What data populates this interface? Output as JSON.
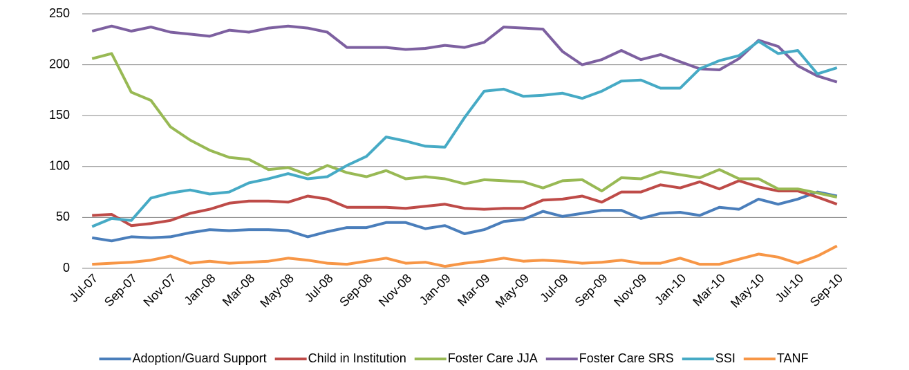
{
  "chart_data": {
    "type": "line",
    "categories": [
      "Jul-07",
      null,
      "Sep-07",
      null,
      "Nov-07",
      null,
      "Jan-08",
      null,
      "Mar-08",
      null,
      "May-08",
      null,
      "Jul-08",
      null,
      "Sep-08",
      null,
      "Nov-08",
      null,
      "Jan-09",
      null,
      "Mar-09",
      null,
      "May-09",
      null,
      "Jul-09",
      null,
      "Sep-09",
      null,
      "Nov-09",
      null,
      "Jan-10",
      null,
      "Mar-10",
      null,
      "May-10",
      null,
      "Jul-10",
      null,
      "Sep-10"
    ],
    "series": [
      {
        "name": "Adoption/Guard Support",
        "color": "#4a7ebb",
        "values": [
          30,
          27,
          31,
          30,
          31,
          35,
          38,
          37,
          38,
          38,
          37,
          31,
          36,
          40,
          40,
          45,
          45,
          39,
          42,
          34,
          38,
          46,
          48,
          56,
          51,
          54,
          57,
          57,
          49,
          54,
          55,
          52,
          60,
          58,
          68,
          63,
          68,
          75,
          71
        ]
      },
      {
        "name": "Child in Institution",
        "color": "#be4b48",
        "values": [
          52,
          53,
          42,
          44,
          47,
          54,
          58,
          64,
          66,
          66,
          65,
          71,
          68,
          60,
          60,
          60,
          59,
          61,
          63,
          59,
          58,
          59,
          59,
          67,
          68,
          71,
          65,
          75,
          75,
          82,
          79,
          85,
          78,
          86,
          80,
          76,
          76,
          70,
          63
        ]
      },
      {
        "name": "Foster Care JJA",
        "color": "#98b954",
        "values": [
          206,
          211,
          173,
          165,
          139,
          126,
          116,
          109,
          107,
          97,
          99,
          92,
          101,
          94,
          90,
          96,
          88,
          90,
          88,
          83,
          87,
          86,
          85,
          79,
          86,
          87,
          76,
          89,
          88,
          95,
          92,
          89,
          97,
          88,
          88,
          78,
          78,
          74,
          70
        ]
      },
      {
        "name": "Foster Care SRS",
        "color": "#7d60a0",
        "values": [
          233,
          238,
          233,
          237,
          232,
          230,
          228,
          234,
          232,
          236,
          238,
          236,
          232,
          217,
          217,
          217,
          215,
          216,
          219,
          217,
          222,
          237,
          236,
          235,
          213,
          200,
          205,
          214,
          205,
          210,
          203,
          196,
          195,
          206,
          224,
          218,
          199,
          189,
          183
        ]
      },
      {
        "name": "SSI",
        "color": "#46aac5",
        "values": [
          41,
          49,
          47,
          69,
          74,
          77,
          73,
          75,
          84,
          88,
          93,
          88,
          90,
          101,
          110,
          129,
          125,
          120,
          119,
          148,
          174,
          176,
          169,
          170,
          172,
          167,
          174,
          184,
          185,
          177,
          177,
          196,
          204,
          209,
          223,
          211,
          214,
          191,
          197
        ]
      },
      {
        "name": "TANF",
        "color": "#f79646",
        "values": [
          4,
          5,
          6,
          8,
          12,
          5,
          7,
          5,
          6,
          7,
          10,
          8,
          5,
          4,
          7,
          10,
          5,
          6,
          2,
          5,
          7,
          10,
          7,
          8,
          7,
          5,
          6,
          8,
          5,
          5,
          10,
          4,
          4,
          9,
          14,
          11,
          5,
          12,
          22
        ]
      }
    ],
    "ylim": [
      0,
      250
    ],
    "yticks": [
      0,
      50,
      100,
      150,
      200,
      250
    ],
    "grid": true,
    "legend": "bottom"
  }
}
